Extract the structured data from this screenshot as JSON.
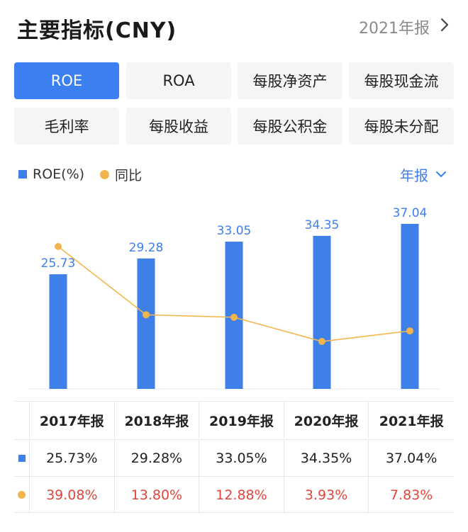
{
  "header": {
    "title": "主要指标(CNY)",
    "period": "2021年报"
  },
  "tabs": [
    {
      "label": "ROE",
      "active": true
    },
    {
      "label": "ROA",
      "active": false
    },
    {
      "label": "每股净资产",
      "active": false
    },
    {
      "label": "每股现金流",
      "active": false
    },
    {
      "label": "毛利率",
      "active": false
    },
    {
      "label": "每股收益",
      "active": false
    },
    {
      "label": "每股公积金",
      "active": false
    },
    {
      "label": "每股未分配",
      "active": false
    }
  ],
  "legend": {
    "bar_label": "ROE(%)",
    "line_label": "同比"
  },
  "frequency": "年报",
  "colors": {
    "accent": "#3c7ff0",
    "bar": "#3f7fe8",
    "line": "#f2b54b",
    "negative_text": "#e2443b"
  },
  "chart_data": {
    "type": "bar",
    "categories": [
      "2017年报",
      "2018年报",
      "2019年报",
      "2020年报",
      "2021年报"
    ],
    "series": [
      {
        "name": "ROE(%)",
        "type": "bar",
        "values": [
          25.73,
          29.28,
          33.05,
          34.35,
          37.04
        ]
      },
      {
        "name": "同比",
        "type": "line",
        "values": [
          39.08,
          13.8,
          12.88,
          3.93,
          7.83
        ]
      }
    ],
    "bar_labels": [
      "25.73",
      "29.28",
      "33.05",
      "34.35",
      "37.04"
    ],
    "grid": false
  },
  "table": {
    "headers": [
      "2017年报",
      "2018年报",
      "2019年报",
      "2020年报",
      "2021年报"
    ],
    "roe_row": [
      "25.73%",
      "29.28%",
      "33.05%",
      "34.35%",
      "37.04%"
    ],
    "yoy_row": [
      "39.08%",
      "13.80%",
      "12.88%",
      "3.93%",
      "7.83%"
    ]
  }
}
